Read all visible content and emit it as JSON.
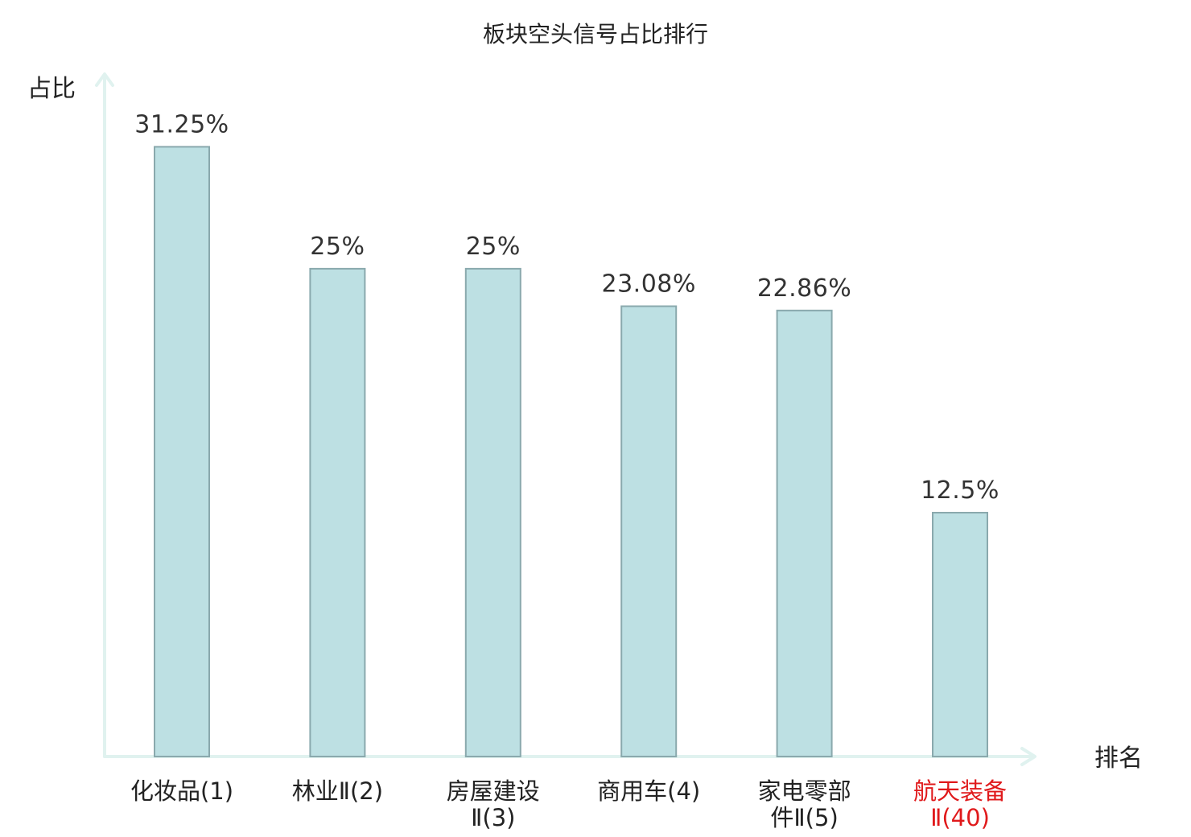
{
  "chart_data": {
    "type": "bar",
    "title": "板块空头信号占比排行",
    "ylabel": "占比",
    "xlabel": "排名",
    "ylim": [
      0,
      33
    ],
    "grid": false,
    "categories": [
      "化妆品(1)",
      "林业Ⅱ(2)",
      "房屋建设Ⅱ(3)",
      "商用车(4)",
      "家电零部件Ⅱ(5)",
      "航天装备Ⅱ(40)"
    ],
    "category_lines": [
      [
        "化妆品(1)"
      ],
      [
        "林业Ⅱ(2)"
      ],
      [
        "房屋建设",
        "Ⅱ(3)"
      ],
      [
        "商用车(4)"
      ],
      [
        "家电零部",
        "件Ⅱ(5)"
      ],
      [
        "航天装备",
        "Ⅱ(40)"
      ]
    ],
    "values": [
      31.25,
      25,
      25,
      23.08,
      22.86,
      12.5
    ],
    "value_labels": [
      "31.25%",
      "25%",
      "25%",
      "23.08%",
      "22.86%",
      "12.5%"
    ],
    "highlight": [
      false,
      false,
      false,
      false,
      false,
      true
    ],
    "colors": {
      "bar_fill": "#bde0e3",
      "bar_stroke": "#8aa9ad",
      "axis": "#e0f2ef",
      "text": "#222222",
      "highlight_text": "#e0191b"
    }
  }
}
